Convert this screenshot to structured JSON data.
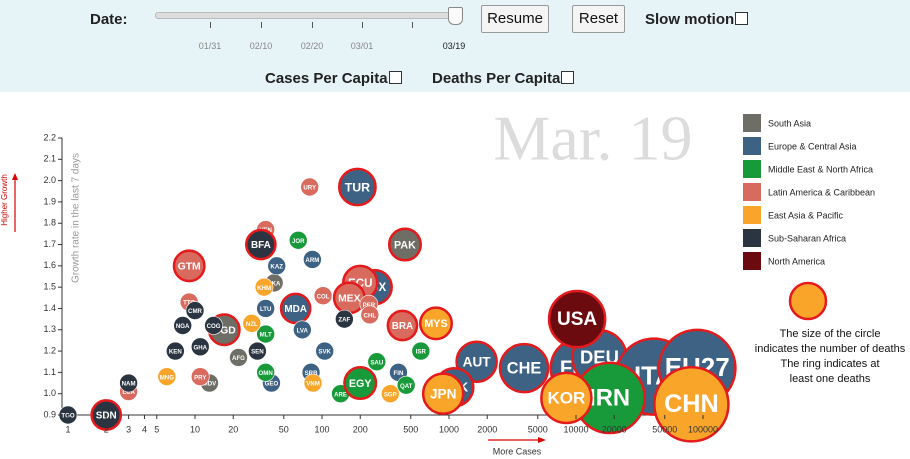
{
  "controls": {
    "date_label": "Date:",
    "slider_ticks": [
      "01/31",
      "02/10",
      "02/20",
      "03/01"
    ],
    "current_date": "03/19",
    "resume": "Resume",
    "reset": "Reset",
    "slow_motion": "Slow motion",
    "cases_per_capita": "Cases Per Capita",
    "deaths_per_capita": "Deaths Per Capita"
  },
  "chart_data": {
    "type": "scatter",
    "watermark": "Mar. 19",
    "ylabel": "Growth rate in the last 7 days",
    "y_arrow_label": "Higher Growth",
    "xlabel": "More Cases",
    "note": [
      "The size of the circle",
      "indicates the number of deaths",
      "The ring indicates at",
      "least one deaths"
    ],
    "log_x": true,
    "xlim": [
      1,
      100000
    ],
    "ylim": [
      0.9,
      2.2
    ],
    "xticks": [
      1,
      2,
      3,
      4,
      5,
      10,
      20,
      50,
      100,
      200,
      500,
      1000,
      2000,
      5000,
      10000,
      20000,
      50000,
      100000
    ],
    "yticks": [
      0.9,
      {
        "value": 1,
        "label": "1.0"
      },
      1.1,
      1.2,
      1.3,
      1.4,
      1.5,
      1.6,
      1.7,
      1.8,
      1.9,
      {
        "value": 2,
        "label": "2.0"
      },
      2.1,
      2.2
    ],
    "series": [
      {
        "name": "South Asia",
        "color": "#6e6e66",
        "labels": [
          "BGD",
          "PAK",
          "LKA",
          "AFG",
          "MDV"
        ],
        "x": [
          17,
          450,
          42,
          22,
          13
        ],
        "values": [
          1.3,
          1.7,
          1.52,
          1.17,
          1.05
        ],
        "sizes": [
          5,
          6,
          0,
          0,
          0
        ]
      },
      {
        "name": "Europe & Central Asia",
        "color": "#3e6283",
        "labels": [
          "TUR",
          "KAZ",
          "ARM",
          "GEO",
          "LTU",
          "MDA",
          "LVA",
          "SRB",
          "SVK",
          "LUX",
          "FIN",
          "AUT",
          "DNK",
          "CHE",
          "FRA",
          "DEU",
          "ITA",
          "EU27"
        ],
        "x": [
          190,
          44,
          84,
          40,
          36,
          62,
          70,
          82,
          105,
          260,
          400,
          1650,
          1100,
          3900,
          10900,
          15300,
          41000,
          90000
        ],
        "values": [
          1.97,
          1.6,
          1.63,
          1.05,
          1.4,
          1.4,
          1.3,
          1.1,
          1.2,
          1.5,
          1.1,
          1.15,
          1.03,
          1.12,
          1.12,
          1.17,
          1.08,
          1.12
        ],
        "sizes": [
          13,
          0,
          0,
          0,
          0,
          4,
          0,
          0,
          0,
          9,
          0,
          23,
          17,
          75,
          420,
          180,
          4200,
          4500
        ]
      },
      {
        "name": "Middle East & North Africa",
        "color": "#189a3a",
        "labels": [
          "JOR",
          "MLT",
          "OMN",
          "ARE",
          "SAU",
          "QAT",
          "ISR",
          "EGY",
          "IRN"
        ],
        "x": [
          65,
          36,
          36,
          140,
          270,
          460,
          600,
          200,
          18400
        ],
        "values": [
          1.72,
          1.28,
          1.1,
          1.0,
          1.15,
          1.04,
          1.2,
          1.05,
          0.98
        ],
        "sizes": [
          0,
          0,
          0,
          0,
          0,
          0,
          0,
          6,
          1800
        ]
      },
      {
        "name": "Latin America & Caribbean",
        "color": "#d86a5e",
        "labels": [
          "URY",
          "VEN",
          "GTM",
          "TTO",
          "PRY",
          "LCA",
          "COL",
          "ECU",
          "MEX",
          "PER",
          "CHL",
          "BRA"
        ],
        "x": [
          80,
          36,
          9,
          9,
          11,
          3,
          102,
          200,
          164,
          234,
          238,
          430
        ],
        "values": [
          1.97,
          1.77,
          1.6,
          1.43,
          1.08,
          1.01,
          1.46,
          1.52,
          1.45,
          1.42,
          1.37,
          1.32
        ],
        "sizes": [
          0,
          0,
          5,
          0,
          0,
          0,
          0,
          9,
          5,
          0,
          0,
          4
        ]
      },
      {
        "name": "East Asia & Pacific",
        "color": "#f8a52a",
        "labels": [
          "MNG",
          "KHM",
          "NZL",
          "VNM",
          "SGP",
          "MYS",
          "JPN",
          "KOR",
          "CHN"
        ],
        "x": [
          6,
          35,
          28,
          85,
          345,
          790,
          900,
          8400,
          81000
        ],
        "values": [
          1.08,
          1.5,
          1.33,
          1.05,
          1.0,
          1.33,
          1.0,
          0.98,
          0.95
        ],
        "sizes": [
          0,
          0,
          0,
          0,
          0,
          6,
          23,
          100,
          3200
        ]
      },
      {
        "name": "Sub-Saharan Africa",
        "color": "#2b3541",
        "labels": [
          "TGO",
          "SDN",
          "NAM",
          "KEN",
          "NGA",
          "CMR",
          "GHA",
          "COG",
          "SEN",
          "BFA",
          "ZAF"
        ],
        "x": [
          1,
          2,
          3,
          7,
          8,
          10,
          11,
          14,
          31,
          33,
          150
        ],
        "values": [
          0.9,
          0.9,
          1.05,
          1.2,
          1.32,
          1.39,
          1.22,
          1.32,
          1.2,
          1.7,
          1.35
        ],
        "sizes": [
          0,
          4,
          0,
          0,
          0,
          0,
          0,
          0,
          0,
          4,
          0
        ]
      },
      {
        "name": "North America",
        "color": "#6b0b10",
        "labels": [
          "USA"
        ],
        "x": [
          10200
        ],
        "values": [
          1.35
        ],
        "sizes": [
          240
        ]
      }
    ]
  }
}
